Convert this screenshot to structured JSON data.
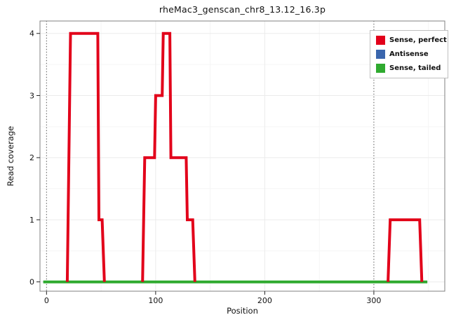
{
  "chart": {
    "title": "rheMac3_genscan_chr8_13.12_16.3p",
    "xlabel": "Position",
    "ylabel": "Read coverage"
  },
  "chart_data": {
    "type": "line",
    "title": "rheMac3_genscan_chr8_13.12_16.3p",
    "xlabel": "Position",
    "ylabel": "Read coverage",
    "xlim": [
      -6,
      365
    ],
    "ylim": [
      -0.15,
      4.2
    ],
    "x_ticks": [
      0,
      100,
      200,
      300
    ],
    "y_ticks": [
      0,
      1,
      2,
      3,
      4
    ],
    "x_minor": [
      50,
      150,
      250,
      350
    ],
    "y_minor": [
      0.5,
      1.5,
      2.5,
      3.5
    ],
    "vlines": [
      0,
      300
    ],
    "grid": true,
    "legend_position": "top-right",
    "colors": {
      "grid_major": "#ebebeb",
      "grid_minor": "#f5f5f5",
      "panel_border": "#808080",
      "vline": "#444444"
    },
    "series": [
      {
        "name": "Sense, perfect",
        "color": "#e2001a",
        "width": 4,
        "z": 3,
        "segments": [
          [
            [
              19,
              0
            ],
            [
              22,
              4
            ],
            [
              47,
              4
            ],
            [
              48,
              1
            ],
            [
              51,
              1
            ],
            [
              53,
              0
            ]
          ],
          [
            [
              88,
              0
            ],
            [
              90,
              2
            ],
            [
              99,
              2
            ],
            [
              100,
              3
            ],
            [
              106,
              3
            ],
            [
              107,
              4
            ],
            [
              113,
              4
            ],
            [
              114,
              2
            ],
            [
              128,
              2
            ],
            [
              129,
              1
            ],
            [
              134,
              1
            ],
            [
              136,
              0
            ]
          ],
          [
            [
              313,
              0
            ],
            [
              315,
              1
            ],
            [
              342,
              1
            ],
            [
              344,
              0
            ]
          ]
        ]
      },
      {
        "name": "Antisense",
        "color": "#3a66ad",
        "width": 3,
        "z": 1,
        "segments": [
          [
            [
              -3,
              0
            ],
            [
              349,
              0
            ]
          ]
        ]
      },
      {
        "name": "Sense, tailed",
        "color": "#2faa2f",
        "width": 4,
        "z": 2,
        "segments": [
          [
            [
              -3,
              0
            ],
            [
              349,
              0
            ]
          ]
        ]
      }
    ]
  }
}
